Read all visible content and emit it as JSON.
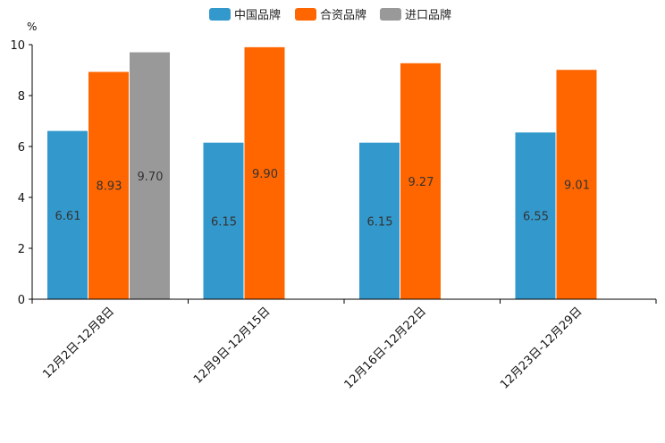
{
  "chart_data": {
    "type": "bar",
    "title": "",
    "unit_label": "%",
    "xlabel": "",
    "ylabel": "%",
    "ylim": [
      0,
      10
    ],
    "yticks": [
      0,
      2,
      4,
      6,
      8,
      10
    ],
    "legend_position": "top-center",
    "grid": false,
    "categories": [
      "12月2日-12月8日",
      "12月9日-12月15日",
      "12月16日-12月22日",
      "12月23日-12月29日"
    ],
    "series": [
      {
        "name": "中国品牌",
        "color": "#3399cc",
        "values": [
          6.61,
          6.15,
          6.15,
          6.55
        ]
      },
      {
        "name": "合资品牌",
        "color": "#ff6600",
        "values": [
          8.93,
          9.9,
          9.27,
          9.01
        ]
      },
      {
        "name": "进口品牌",
        "color": "#999999",
        "values": [
          9.7,
          null,
          null,
          null
        ]
      }
    ]
  }
}
